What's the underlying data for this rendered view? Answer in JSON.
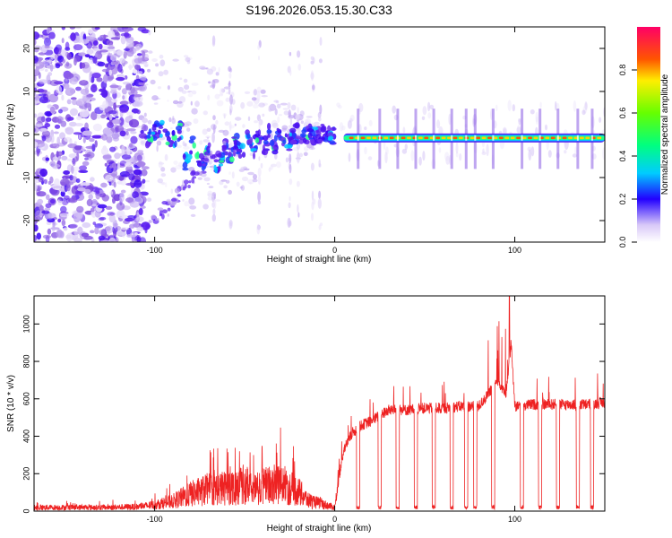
{
  "title": "S196.2026.053.15.30.C33",
  "chart_data": [
    {
      "type": "heatmap",
      "title": "S196.2026.053.15.30.C33",
      "xlabel": "Height of straight line (km)",
      "ylabel": "Frequency (Hz)",
      "xlim": [
        -167,
        150
      ],
      "ylim": [
        -25,
        25
      ],
      "xticks": [
        -100,
        0,
        100
      ],
      "yticks": [
        -20,
        -10,
        0,
        10,
        20
      ],
      "colorbar": {
        "label": "Normalized spectral amplitude",
        "range": [
          0.0,
          1.0
        ],
        "ticks": [
          0.0,
          0.2,
          0.4,
          0.6,
          0.8
        ]
      },
      "tone": {
        "start_x": 5,
        "end_x": 150,
        "frequency_hz": -0.8
      },
      "dropouts_x": [
        13,
        25,
        35,
        45,
        55,
        65,
        73,
        78,
        88,
        104,
        114,
        124,
        135,
        143
      ]
    },
    {
      "type": "line",
      "xlabel": "Height of straight line (km)",
      "ylabel": "SNR (10 * v/v)",
      "xlim": [
        -167,
        150
      ],
      "ylim": [
        0,
        1150
      ],
      "xticks": [
        -100,
        0,
        100
      ],
      "yticks": [
        0,
        200,
        400,
        600,
        800,
        1000
      ],
      "color": "#ee2222",
      "series": [
        {
          "name": "SNR",
          "x": [
            -167,
            -150,
            -130,
            -110,
            -100,
            -90,
            -80,
            -70,
            -60,
            -50,
            -45,
            -40,
            -30,
            -25,
            -20,
            -15,
            -10,
            -5,
            0,
            5,
            10,
            15,
            20,
            30,
            40,
            50,
            60,
            70,
            80,
            85,
            90,
            95,
            98,
            100,
            110,
            120,
            130,
            140,
            150
          ],
          "values": [
            30,
            30,
            30,
            35,
            50,
            80,
            140,
            180,
            190,
            220,
            170,
            200,
            230,
            190,
            160,
            90,
            70,
            50,
            30,
            330,
            420,
            460,
            480,
            540,
            540,
            550,
            550,
            560,
            560,
            620,
            700,
            620,
            900,
            560,
            570,
            570,
            570,
            570,
            580
          ]
        }
      ]
    }
  ]
}
